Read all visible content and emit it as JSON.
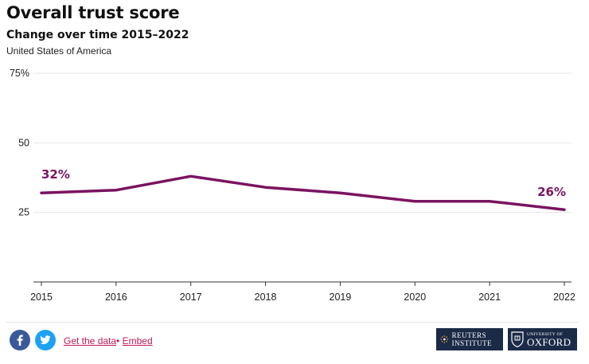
{
  "header": {
    "title": "Overall trust score",
    "subtitle": "Change over time 2015–2022",
    "country": "United States of America"
  },
  "chart_data": {
    "type": "line",
    "x": [
      "2015",
      "2016",
      "2017",
      "2018",
      "2019",
      "2020",
      "2021",
      "2022"
    ],
    "series": [
      {
        "values": [
          32,
          33,
          38,
          34,
          32,
          29,
          29,
          26
        ],
        "color": "#7a1460"
      }
    ],
    "ylim": [
      0,
      75
    ],
    "yticks": [
      "",
      "25",
      "50",
      "75%"
    ],
    "ytick_values": [
      0,
      25,
      50,
      75
    ],
    "data_labels": {
      "first": "32%",
      "last": "26%"
    },
    "grid": true
  },
  "footer": {
    "get_data": "Get the data",
    "separator": "•",
    "embed": "Embed",
    "reuters_logo": "REUTERS INSTITUTE",
    "oxford_small": "UNIVERSITY OF",
    "oxford_big": "OXFORD"
  },
  "colors": {
    "line": "#7a1460",
    "link": "#c2185b",
    "logo_bg": "#1b2a47"
  }
}
